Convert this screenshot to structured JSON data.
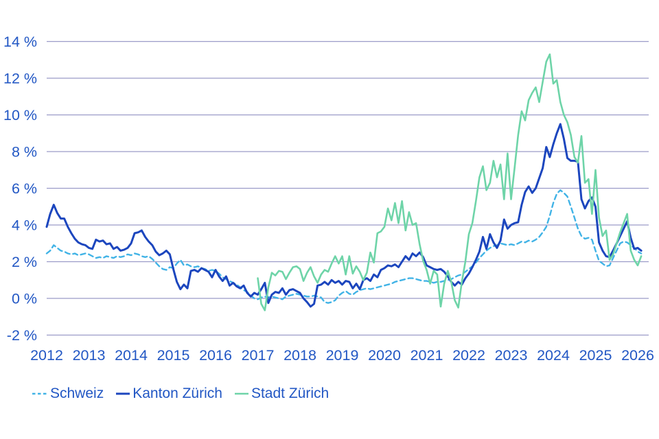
{
  "colors": {
    "grid": "#9b9bc8",
    "text": "#2257c4",
    "schweiz": "#41b3e6",
    "kanton": "#1c46be",
    "stadt": "#6ed4a8"
  },
  "chart_data": {
    "type": "line",
    "title": "",
    "xlabel": "",
    "ylabel": "",
    "grid": true,
    "legend_position": "bottom-left",
    "y_axis": {
      "min": -2,
      "max": 14,
      "unit": "%"
    },
    "y_ticks": [
      {
        "value": 14,
        "label": "14 %"
      },
      {
        "value": 12,
        "label": "12 %"
      },
      {
        "value": 10,
        "label": "10 %"
      },
      {
        "value": 8,
        "label": "8 %"
      },
      {
        "value": 6,
        "label": "6 %"
      },
      {
        "value": 4,
        "label": "4 %"
      },
      {
        "value": 2,
        "label": "2 %"
      },
      {
        "value": 0,
        "label": "0 %"
      },
      {
        "value": -2,
        "label": "-2 %"
      }
    ],
    "x_tick_years": [
      "2012",
      "2013",
      "2014",
      "2015",
      "2016",
      "2017",
      "2018",
      "2019",
      "2020",
      "2021",
      "2022",
      "2023",
      "2024",
      "2025",
      "2026"
    ],
    "x_start": "2012-01",
    "x_end": "2026-02",
    "x_interval": "monthly",
    "series": [
      {
        "name": "Schweiz",
        "dash": true,
        "values": [
          2.45,
          2.6,
          2.9,
          2.75,
          2.6,
          2.55,
          2.45,
          2.4,
          2.45,
          2.35,
          2.4,
          2.45,
          2.4,
          2.3,
          2.2,
          2.25,
          2.2,
          2.3,
          2.25,
          2.2,
          2.3,
          2.25,
          2.3,
          2.4,
          2.35,
          2.45,
          2.4,
          2.3,
          2.25,
          2.3,
          2.15,
          1.95,
          1.75,
          1.6,
          1.55,
          1.7,
          1.65,
          1.9,
          2.1,
          1.8,
          1.85,
          1.75,
          1.7,
          1.75,
          1.65,
          1.6,
          1.5,
          1.55,
          1.5,
          1.35,
          1.15,
          1.05,
          0.95,
          0.85,
          0.75,
          0.6,
          0.45,
          0.35,
          0.15,
          0.0,
          -0.05,
          0.05,
          0.1,
          0.05,
          0.1,
          0.05,
          0.0,
          -0.05,
          0.1,
          0.15,
          0.2,
          0.25,
          0.2,
          0.15,
          0.1,
          0.1,
          0.15,
          0.1,
          0.05,
          -0.2,
          -0.25,
          -0.2,
          -0.1,
          0.15,
          0.3,
          0.4,
          0.25,
          0.2,
          0.35,
          0.45,
          0.5,
          0.55,
          0.5,
          0.55,
          0.6,
          0.65,
          0.7,
          0.75,
          0.8,
          0.9,
          0.95,
          1.0,
          1.05,
          1.1,
          1.1,
          1.05,
          1.0,
          0.95,
          0.95,
          0.9,
          0.85,
          0.9,
          0.9,
          0.95,
          1.0,
          1.05,
          1.15,
          1.25,
          1.3,
          1.45,
          1.6,
          1.75,
          1.95,
          2.2,
          2.4,
          2.6,
          2.75,
          2.85,
          2.9,
          3.0,
          2.95,
          2.9,
          2.95,
          2.9,
          3.0,
          3.1,
          3.05,
          3.15,
          3.1,
          3.2,
          3.35,
          3.6,
          3.9,
          4.5,
          5.2,
          5.7,
          5.9,
          5.75,
          5.55,
          5.0,
          4.4,
          3.8,
          3.4,
          3.25,
          3.3,
          3.2,
          2.6,
          2.05,
          1.9,
          1.75,
          1.8,
          2.2,
          2.6,
          3.0,
          3.1,
          3.05,
          2.9,
          2.75,
          2.55,
          2.45
        ]
      },
      {
        "name": "Kanton Zürich",
        "dash": false,
        "values": [
          3.9,
          4.6,
          5.1,
          4.65,
          4.35,
          4.35,
          3.9,
          3.55,
          3.25,
          3.05,
          2.95,
          2.9,
          2.75,
          2.7,
          3.2,
          3.1,
          3.15,
          2.95,
          3.0,
          2.7,
          2.8,
          2.6,
          2.65,
          2.75,
          3.0,
          3.55,
          3.6,
          3.7,
          3.35,
          3.1,
          2.9,
          2.55,
          2.35,
          2.45,
          2.6,
          2.4,
          1.6,
          0.9,
          0.5,
          0.75,
          0.55,
          1.5,
          1.55,
          1.45,
          1.65,
          1.55,
          1.45,
          1.15,
          1.55,
          1.2,
          0.95,
          1.2,
          0.7,
          0.85,
          0.65,
          0.55,
          0.7,
          0.3,
          0.1,
          0.3,
          0.2,
          0.5,
          0.85,
          -0.25,
          0.2,
          0.35,
          0.3,
          0.55,
          0.2,
          0.45,
          0.5,
          0.4,
          0.3,
          0.0,
          -0.2,
          -0.45,
          -0.3,
          0.7,
          0.75,
          0.9,
          0.75,
          1.0,
          0.85,
          0.95,
          0.75,
          0.95,
          0.9,
          0.55,
          0.8,
          0.5,
          1.0,
          1.1,
          0.95,
          1.3,
          1.15,
          1.55,
          1.65,
          1.8,
          1.75,
          1.85,
          1.7,
          2.0,
          2.3,
          2.1,
          2.45,
          2.3,
          2.5,
          2.25,
          1.8,
          1.7,
          1.6,
          1.55,
          1.6,
          1.45,
          1.2,
          0.9,
          0.7,
          0.9,
          0.75,
          1.1,
          1.35,
          1.7,
          2.1,
          2.55,
          3.35,
          2.7,
          3.5,
          3.05,
          2.75,
          3.15,
          4.3,
          3.8,
          4.0,
          4.1,
          4.15,
          5.1,
          5.8,
          6.1,
          5.75,
          6.0,
          6.55,
          7.1,
          8.25,
          7.7,
          8.4,
          9.0,
          9.5,
          8.7,
          7.65,
          7.5,
          7.5,
          7.45,
          5.4,
          4.9,
          5.3,
          5.5,
          5.0,
          3.05,
          2.6,
          2.3,
          2.25,
          2.6,
          3.0,
          3.4,
          3.8,
          4.2,
          3.3,
          2.7,
          2.75,
          2.6
        ]
      },
      {
        "name": "Stadt Zürich",
        "dash": false,
        "values": [
          null,
          null,
          null,
          null,
          null,
          null,
          null,
          null,
          null,
          null,
          null,
          null,
          null,
          null,
          null,
          null,
          null,
          null,
          null,
          null,
          null,
          null,
          null,
          null,
          null,
          null,
          null,
          null,
          null,
          null,
          null,
          null,
          null,
          null,
          null,
          null,
          null,
          null,
          null,
          null,
          null,
          null,
          null,
          null,
          null,
          null,
          null,
          null,
          null,
          null,
          null,
          null,
          null,
          null,
          null,
          null,
          null,
          null,
          null,
          null,
          1.1,
          -0.3,
          -0.65,
          0.6,
          1.4,
          1.25,
          1.5,
          1.45,
          1.05,
          1.4,
          1.7,
          1.75,
          1.6,
          0.95,
          1.4,
          1.7,
          1.2,
          0.85,
          1.3,
          1.55,
          1.45,
          1.9,
          2.3,
          1.9,
          2.3,
          1.3,
          2.3,
          1.35,
          1.75,
          1.45,
          1.0,
          1.4,
          2.5,
          1.95,
          3.55,
          3.65,
          3.9,
          4.9,
          4.25,
          5.2,
          4.1,
          5.3,
          3.7,
          4.7,
          4.0,
          4.1,
          2.95,
          2.05,
          1.55,
          0.8,
          1.5,
          1.3,
          -0.45,
          0.8,
          1.5,
          0.9,
          -0.1,
          -0.5,
          0.9,
          2.0,
          3.5,
          4.1,
          5.3,
          6.6,
          7.2,
          5.9,
          6.3,
          7.5,
          6.6,
          7.3,
          5.4,
          7.9,
          5.4,
          7.1,
          8.9,
          10.2,
          9.7,
          10.8,
          11.2,
          11.5,
          10.7,
          11.8,
          12.9,
          13.3,
          11.7,
          11.9,
          10.7,
          10.0,
          9.6,
          8.9,
          7.7,
          7.4,
          8.85,
          6.3,
          6.5,
          4.6,
          7.0,
          4.4,
          3.4,
          3.7,
          2.1,
          2.4,
          3.0,
          3.6,
          4.1,
          4.6,
          2.6,
          2.1,
          1.8,
          2.3
        ]
      }
    ]
  }
}
